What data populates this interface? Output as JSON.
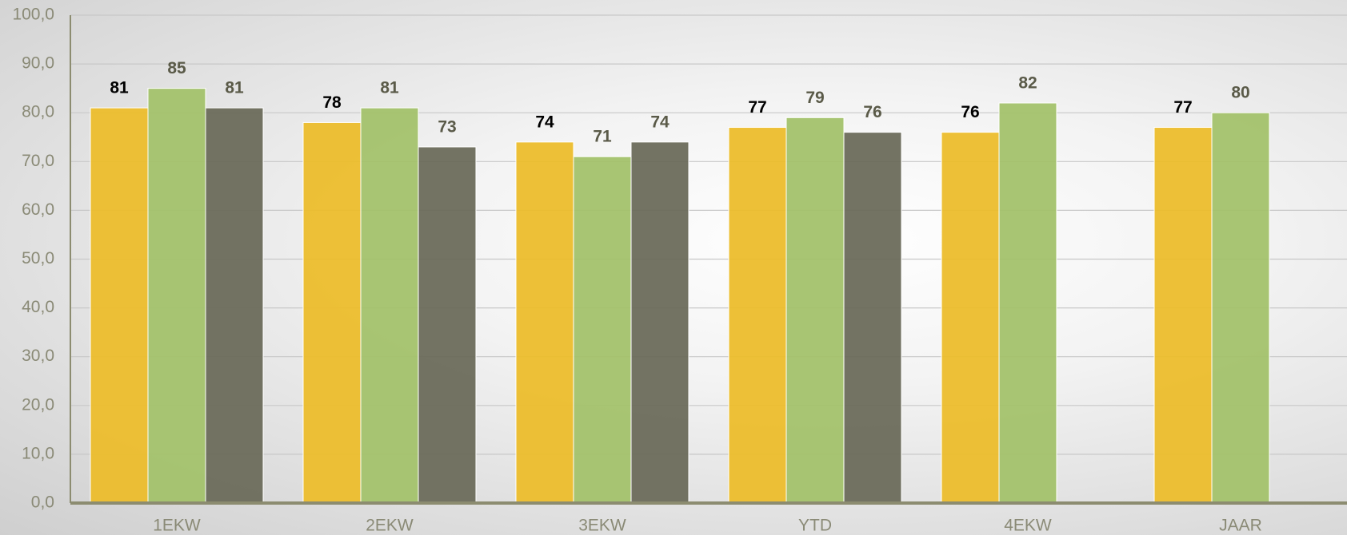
{
  "chart_data": {
    "type": "bar",
    "categories": [
      "1EKW",
      "2EKW",
      "3EKW",
      "YTD",
      "4EKW",
      "JAAR"
    ],
    "series": [
      {
        "color": "#ecbd2c",
        "label_color": "#000000",
        "values": [
          81,
          78,
          74,
          77,
          76,
          77
        ]
      },
      {
        "color": "#a3c26b",
        "label_color": "#5a5a48",
        "values": [
          85,
          81,
          71,
          79,
          82,
          80
        ]
      },
      {
        "color": "#6b6b5b",
        "label_color": "#5a5a48",
        "values": [
          81,
          73,
          74,
          76,
          null,
          null
        ]
      }
    ],
    "ylim": [
      0,
      100
    ],
    "yticks": [
      {
        "value": 0,
        "label": "0,0"
      },
      {
        "value": 10,
        "label": "10,0"
      },
      {
        "value": 20,
        "label": "20,0"
      },
      {
        "value": 30,
        "label": "30,0"
      },
      {
        "value": 40,
        "label": "40,0"
      },
      {
        "value": 50,
        "label": "50,0"
      },
      {
        "value": 60,
        "label": "60,0"
      },
      {
        "value": 70,
        "label": "70,0"
      },
      {
        "value": 80,
        "label": "80,0"
      },
      {
        "value": 90,
        "label": "90,0"
      },
      {
        "value": 100,
        "label": "100,0"
      }
    ],
    "grid": true
  }
}
